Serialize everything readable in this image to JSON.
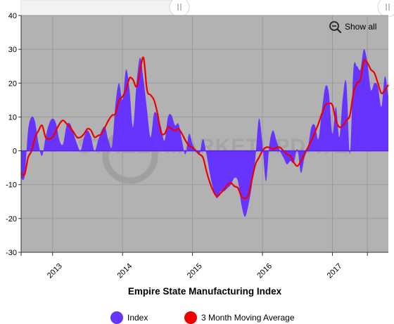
{
  "chart_data": {
    "type": "area",
    "title": "Empire State Manufacturing Index",
    "watermark": "STREETMARKETUPDATE",
    "ylim": [
      -30,
      40
    ],
    "yticks": [
      40,
      30,
      20,
      10,
      0,
      -10,
      -20,
      -30
    ],
    "xlim": [
      2012.55,
      2017.8
    ],
    "xticks": [
      {
        "label": "2013",
        "x": 2013.0
      },
      {
        "label": "2014",
        "x": 2014.0
      },
      {
        "label": "2015",
        "x": 2015.0
      },
      {
        "label": "2016",
        "x": 2016.0
      },
      {
        "label": "2017",
        "x": 2017.0
      }
    ],
    "grid": true,
    "legend_position": "bottom",
    "show_all_label": "Show all",
    "series": [
      {
        "name": "Index",
        "color": "#6633ff",
        "kind": "area",
        "points": [
          [
            2012.55,
            -8
          ],
          [
            2012.6,
            -7.5
          ],
          [
            2012.65,
            6
          ],
          [
            2012.7,
            10
          ],
          [
            2012.75,
            8.5
          ],
          [
            2012.8,
            2
          ],
          [
            2012.85,
            -1.5
          ],
          [
            2012.9,
            4
          ],
          [
            2012.95,
            8
          ],
          [
            2013.0,
            9.5
          ],
          [
            2013.05,
            8
          ],
          [
            2013.1,
            3
          ],
          [
            2013.15,
            2
          ],
          [
            2013.2,
            7.5
          ],
          [
            2013.25,
            8
          ],
          [
            2013.3,
            5
          ],
          [
            2013.35,
            2
          ],
          [
            2013.4,
            0
          ],
          [
            2013.45,
            4
          ],
          [
            2013.5,
            6
          ],
          [
            2013.55,
            4
          ],
          [
            2013.6,
            0
          ],
          [
            2013.65,
            3
          ],
          [
            2013.7,
            6
          ],
          [
            2013.75,
            7
          ],
          [
            2013.8,
            3
          ],
          [
            2013.85,
            1.5
          ],
          [
            2013.9,
            14
          ],
          [
            2013.95,
            20
          ],
          [
            2014.0,
            15
          ],
          [
            2014.05,
            24
          ],
          [
            2014.1,
            18
          ],
          [
            2014.15,
            7
          ],
          [
            2014.2,
            20
          ],
          [
            2014.25,
            27.5
          ],
          [
            2014.3,
            21
          ],
          [
            2014.35,
            12
          ],
          [
            2014.4,
            4
          ],
          [
            2014.45,
            11
          ],
          [
            2014.5,
            10.5
          ],
          [
            2014.55,
            7
          ],
          [
            2014.6,
            3
          ],
          [
            2014.65,
            10
          ],
          [
            2014.7,
            10.5
          ],
          [
            2014.75,
            7.5
          ],
          [
            2014.8,
            8
          ],
          [
            2014.85,
            3
          ],
          [
            2014.9,
            -1
          ],
          [
            2014.95,
            5
          ],
          [
            2015.0,
            2
          ],
          [
            2015.05,
            0
          ],
          [
            2015.1,
            -1
          ],
          [
            2015.15,
            3.5
          ],
          [
            2015.2,
            -1
          ],
          [
            2015.25,
            -7
          ],
          [
            2015.3,
            -11.5
          ],
          [
            2015.35,
            -14
          ],
          [
            2015.4,
            -12
          ],
          [
            2015.45,
            -12
          ],
          [
            2015.5,
            -11
          ],
          [
            2015.55,
            -10
          ],
          [
            2015.6,
            -8
          ],
          [
            2015.65,
            -9
          ],
          [
            2015.7,
            -16
          ],
          [
            2015.75,
            -19.5
          ],
          [
            2015.8,
            -16
          ],
          [
            2015.85,
            -10
          ],
          [
            2015.9,
            -2
          ],
          [
            2015.95,
            9.5
          ],
          [
            2016.0,
            2
          ],
          [
            2016.05,
            -9
          ],
          [
            2016.1,
            2
          ],
          [
            2016.15,
            6
          ],
          [
            2016.2,
            3
          ],
          [
            2016.25,
            0
          ],
          [
            2016.3,
            -2
          ],
          [
            2016.35,
            -4
          ],
          [
            2016.4,
            -3
          ],
          [
            2016.45,
            -3.5
          ],
          [
            2016.5,
            0.5
          ],
          [
            2016.55,
            -6.5
          ],
          [
            2016.6,
            -2
          ],
          [
            2016.65,
            1
          ],
          [
            2016.7,
            7
          ],
          [
            2016.75,
            7.5
          ],
          [
            2016.8,
            3.5
          ],
          [
            2016.85,
            12
          ],
          [
            2016.9,
            19
          ],
          [
            2016.95,
            17
          ],
          [
            2017.0,
            5
          ],
          [
            2017.05,
            13
          ],
          [
            2017.1,
            4
          ],
          [
            2017.15,
            16
          ],
          [
            2017.2,
            20
          ],
          [
            2017.25,
            -1
          ],
          [
            2017.3,
            24
          ],
          [
            2017.35,
            25
          ],
          [
            2017.4,
            24
          ],
          [
            2017.45,
            30
          ],
          [
            2017.5,
            26
          ],
          [
            2017.55,
            18
          ],
          [
            2017.6,
            20
          ],
          [
            2017.65,
            19
          ],
          [
            2017.7,
            13
          ],
          [
            2017.75,
            22
          ],
          [
            2017.8,
            16
          ]
        ]
      },
      {
        "name": "3 Month Moving Average",
        "color": "#ee0000",
        "kind": "line",
        "points": [
          [
            2012.55,
            -6.5
          ],
          [
            2012.6,
            -7
          ],
          [
            2012.65,
            -2
          ],
          [
            2012.7,
            0
          ],
          [
            2012.75,
            4
          ],
          [
            2012.8,
            6
          ],
          [
            2012.85,
            7.5
          ],
          [
            2012.9,
            4
          ],
          [
            2012.95,
            3.5
          ],
          [
            2013.0,
            4
          ],
          [
            2013.05,
            6
          ],
          [
            2013.1,
            8
          ],
          [
            2013.15,
            9
          ],
          [
            2013.2,
            8
          ],
          [
            2013.25,
            7
          ],
          [
            2013.3,
            5.5
          ],
          [
            2013.35,
            4
          ],
          [
            2013.4,
            4
          ],
          [
            2013.45,
            5
          ],
          [
            2013.5,
            6.5
          ],
          [
            2013.55,
            6
          ],
          [
            2013.6,
            4
          ],
          [
            2013.65,
            4.5
          ],
          [
            2013.7,
            5
          ],
          [
            2013.75,
            7
          ],
          [
            2013.8,
            9
          ],
          [
            2013.85,
            10.5
          ],
          [
            2013.9,
            11
          ],
          [
            2013.95,
            15
          ],
          [
            2014.0,
            16
          ],
          [
            2014.05,
            18
          ],
          [
            2014.1,
            21.5
          ],
          [
            2014.15,
            21
          ],
          [
            2014.2,
            19
          ],
          [
            2014.25,
            23.5
          ],
          [
            2014.3,
            27.5
          ],
          [
            2014.35,
            18
          ],
          [
            2014.4,
            16.5
          ],
          [
            2014.45,
            15
          ],
          [
            2014.5,
            11
          ],
          [
            2014.55,
            5.5
          ],
          [
            2014.6,
            5
          ],
          [
            2014.65,
            7
          ],
          [
            2014.7,
            6.5
          ],
          [
            2014.75,
            6
          ],
          [
            2014.8,
            6.5
          ],
          [
            2014.85,
            5
          ],
          [
            2014.9,
            3
          ],
          [
            2014.95,
            1.5
          ],
          [
            2015.0,
            1
          ],
          [
            2015.05,
            0
          ],
          [
            2015.1,
            -1
          ],
          [
            2015.15,
            -2
          ],
          [
            2015.2,
            -6
          ],
          [
            2015.25,
            -9.5
          ],
          [
            2015.3,
            -12
          ],
          [
            2015.35,
            -13.5
          ],
          [
            2015.4,
            -12.5
          ],
          [
            2015.45,
            -11.5
          ],
          [
            2015.5,
            -10
          ],
          [
            2015.55,
            -9.5
          ],
          [
            2015.6,
            -10.5
          ],
          [
            2015.65,
            -11
          ],
          [
            2015.7,
            -13.5
          ],
          [
            2015.75,
            -14
          ],
          [
            2015.8,
            -13
          ],
          [
            2015.85,
            -8.5
          ],
          [
            2015.9,
            -4
          ],
          [
            2015.95,
            -2
          ],
          [
            2016.0,
            0
          ],
          [
            2016.05,
            1
          ],
          [
            2016.1,
            1
          ],
          [
            2016.15,
            0.5
          ],
          [
            2016.2,
            1
          ],
          [
            2016.25,
            1
          ],
          [
            2016.3,
            0
          ],
          [
            2016.35,
            -1
          ],
          [
            2016.4,
            -1.5
          ],
          [
            2016.45,
            -3.5
          ],
          [
            2016.5,
            -4.5
          ],
          [
            2016.55,
            -3
          ],
          [
            2016.6,
            -1
          ],
          [
            2016.65,
            1
          ],
          [
            2016.7,
            3
          ],
          [
            2016.75,
            5.5
          ],
          [
            2016.8,
            8
          ],
          [
            2016.85,
            11
          ],
          [
            2016.9,
            13.5
          ],
          [
            2016.95,
            14
          ],
          [
            2017.0,
            13.5
          ],
          [
            2017.05,
            9
          ],
          [
            2017.1,
            7
          ],
          [
            2017.15,
            7.5
          ],
          [
            2017.2,
            9
          ],
          [
            2017.25,
            10.5
          ],
          [
            2017.3,
            17
          ],
          [
            2017.35,
            20
          ],
          [
            2017.4,
            21
          ],
          [
            2017.45,
            26.5
          ],
          [
            2017.5,
            26
          ],
          [
            2017.55,
            24
          ],
          [
            2017.6,
            23
          ],
          [
            2017.65,
            20
          ],
          [
            2017.7,
            17
          ],
          [
            2017.75,
            18
          ],
          [
            2017.8,
            19.5
          ]
        ]
      }
    ]
  }
}
